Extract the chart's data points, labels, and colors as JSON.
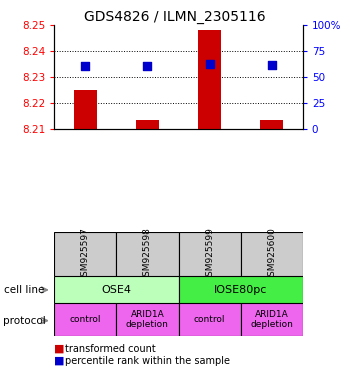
{
  "title": "GDS4826 / ILMN_2305116",
  "samples": [
    "GSM925597",
    "GSM925598",
    "GSM925599",
    "GSM925600"
  ],
  "transformed_counts": [
    8.225,
    8.2135,
    8.248,
    8.2135
  ],
  "percentile_ranks": [
    60,
    60,
    62,
    61
  ],
  "ylim": [
    8.21,
    8.25
  ],
  "ylim_right": [
    0,
    100
  ],
  "yticks_left": [
    8.21,
    8.22,
    8.23,
    8.24,
    8.25
  ],
  "yticks_right": [
    0,
    25,
    50,
    75,
    100
  ],
  "ytick_labels_right": [
    "0",
    "25",
    "50",
    "75",
    "100%"
  ],
  "bar_color": "#cc0000",
  "dot_color": "#0000cc",
  "bar_bottom": 8.21,
  "cell_line_groups": [
    {
      "name": "OSE4",
      "start": 0,
      "end": 1,
      "color": "#bbffbb"
    },
    {
      "name": "IOSE80pc",
      "start": 2,
      "end": 3,
      "color": "#44ee44"
    }
  ],
  "protocols": [
    "control",
    "ARID1A\ndepletion",
    "control",
    "ARID1A\ndepletion"
  ],
  "protocol_color": "#ee66ee",
  "sample_box_color": "#cccccc",
  "legend_red_label": "transformed count",
  "legend_blue_label": "percentile rank within the sample",
  "cell_line_label": "cell line",
  "protocol_label": "protocol"
}
